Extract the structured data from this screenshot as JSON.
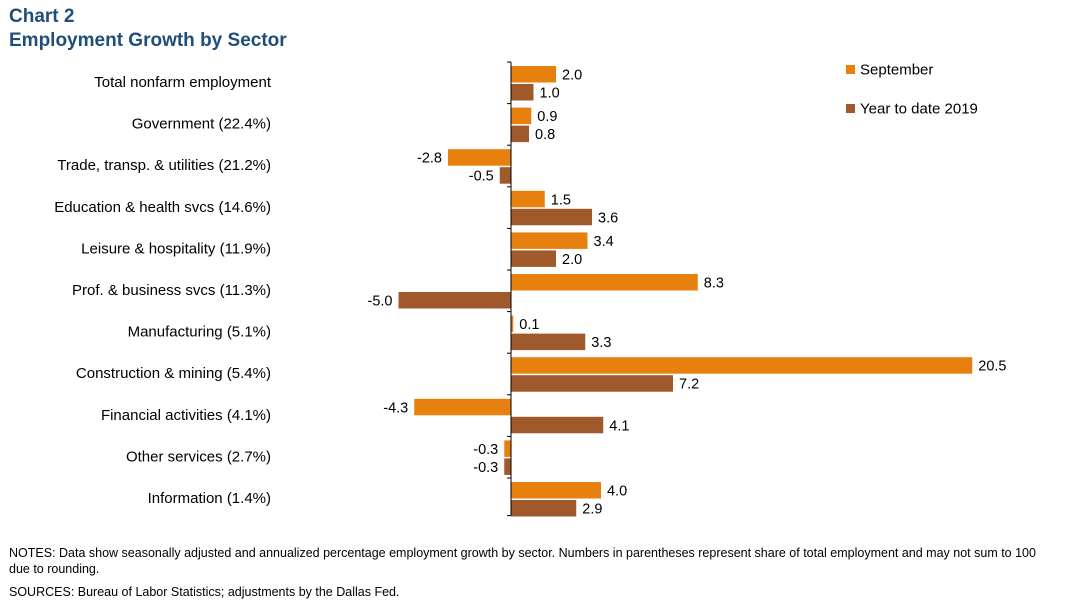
{
  "title": "Chart 2",
  "subtitle": "Employment  Growth by Sector",
  "notes": "NOTES:  Data show seasonally adjusted and annualized percentage employment  growth by sector. Numbers in parentheses represent share of total employment and may not sum to 100 due to rounding.",
  "sources": "SOURCES:  Bureau of Labor Statistics;  adjustments by the Dallas Fed.",
  "colors": {
    "title": "#1F4E79",
    "september": "#E8800F",
    "ytd": "#A0592A",
    "axis": "#000000"
  },
  "chart_data": {
    "type": "bar",
    "orientation": "horizontal",
    "categories": [
      "Total nonfarm employment",
      "Government (22.4%)",
      "Trade, transp. & utilities (21.2%)",
      "Education & health svcs (14.6%)",
      "Leisure & hospitality (11.9%)",
      "Prof. & business svcs (11.3%)",
      "Manufacturing (5.1%)",
      "Construction & mining (5.4%)",
      "Financial activities (4.1%)",
      "Other services (2.7%)",
      "Information (1.4%)"
    ],
    "series": [
      {
        "name": "September",
        "values": [
          2.0,
          0.9,
          -2.8,
          1.5,
          3.4,
          8.3,
          0.1,
          20.5,
          -4.3,
          -0.3,
          4.0
        ],
        "labels": [
          "2.0",
          "0.9",
          "-2.8",
          "1.5",
          "3.4",
          "8.3",
          "0.1",
          "20.5",
          "-4.3",
          "-0.3",
          "4.0"
        ]
      },
      {
        "name": "Year to date 2019",
        "values": [
          1.0,
          0.8,
          -0.5,
          3.6,
          2.0,
          -5.0,
          3.3,
          7.2,
          4.1,
          -0.3,
          2.9
        ],
        "labels": [
          "1.0",
          "0.8",
          "-0.5",
          "3.6",
          "2.0",
          "-5.0",
          "3.3",
          "7.2",
          "4.1",
          "-0.3",
          "2.9"
        ]
      }
    ],
    "legend": "top-right",
    "grid": false,
    "xlim": [
      -6,
      21
    ]
  }
}
